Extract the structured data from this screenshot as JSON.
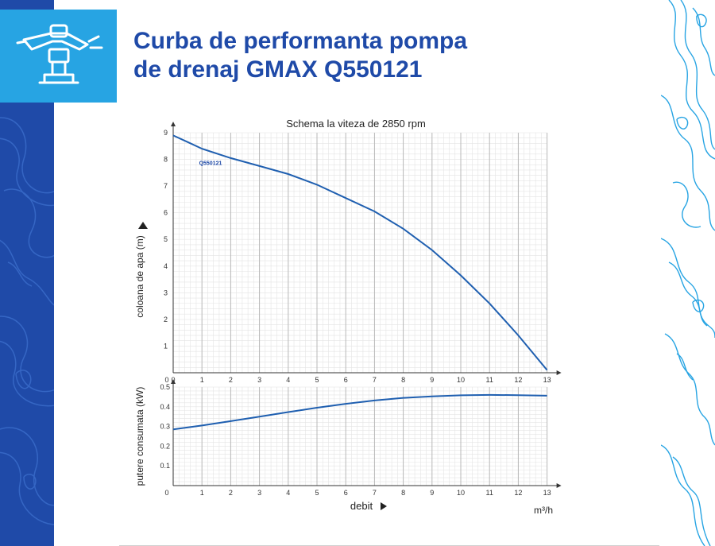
{
  "header": {
    "title_line1": "Curba de performanta pompa",
    "title_line2": "de drenaj GMAX Q550121"
  },
  "colors": {
    "brand_blue": "#1f4aa8",
    "accent_cyan": "#27a4e3",
    "curve": "#1f5fb0",
    "grid_major": "#b8b8b8",
    "grid_minor": "#e4e4e4"
  },
  "icon": "sprinkler-icon",
  "chart_data": [
    {
      "type": "line",
      "title": "Schema la viteza de 2850 rpm",
      "ylabel": "coloana de apa (m)",
      "xlim": [
        0,
        13
      ],
      "ylim": [
        0,
        9
      ],
      "x_ticks": [
        "0",
        "1",
        "2",
        "3",
        "4",
        "5",
        "6",
        "7",
        "8",
        "9",
        "10",
        "11",
        "12",
        "13"
      ],
      "y_ticks": [
        "1",
        "2",
        "3",
        "4",
        "5",
        "6",
        "7",
        "8",
        "9"
      ],
      "grid": true,
      "series": [
        {
          "name": "Q550121",
          "x": [
            0,
            0.5,
            1,
            2,
            3,
            4,
            5,
            6,
            7,
            8,
            9,
            10,
            11,
            12,
            13
          ],
          "y": [
            8.9,
            8.65,
            8.4,
            8.05,
            7.75,
            7.45,
            7.05,
            6.55,
            6.05,
            5.4,
            4.6,
            3.65,
            2.6,
            1.4,
            0.1
          ]
        }
      ]
    },
    {
      "type": "line",
      "ylabel": "putere consumata (kW)",
      "xlabel": "debit",
      "unit": "m³/h",
      "xlim": [
        0,
        13
      ],
      "ylim": [
        0,
        0.5
      ],
      "x_ticks": [
        "0",
        "1",
        "2",
        "3",
        "4",
        "5",
        "6",
        "7",
        "8",
        "9",
        "10",
        "11",
        "12",
        "13"
      ],
      "y_ticks": [
        "0.1",
        "0.2",
        "0.3",
        "0.4",
        "0.5"
      ],
      "grid": true,
      "series": [
        {
          "x": [
            0,
            1,
            2,
            3,
            4,
            5,
            6,
            7,
            8,
            9,
            10,
            11,
            12,
            13
          ],
          "y": [
            0.285,
            0.305,
            0.327,
            0.35,
            0.373,
            0.395,
            0.415,
            0.432,
            0.445,
            0.453,
            0.458,
            0.46,
            0.459,
            0.456
          ]
        }
      ]
    }
  ]
}
